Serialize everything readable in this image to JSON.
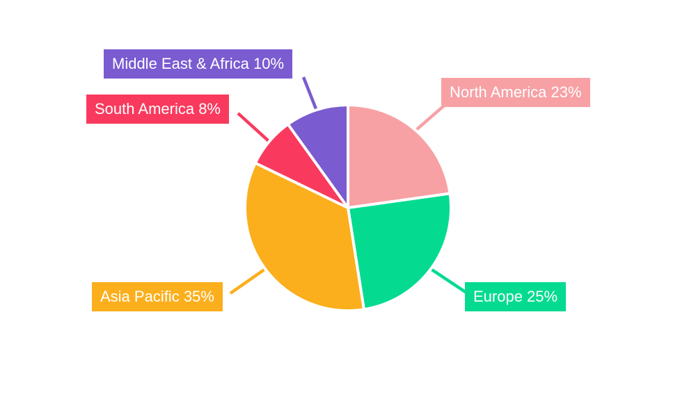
{
  "page": {
    "background_color": "#ffffff"
  },
  "chart_data": {
    "type": "pie",
    "title": "",
    "categories": [
      "North America",
      "Europe",
      "Asia Pacific",
      "South America",
      "Middle East & Africa"
    ],
    "values": [
      23,
      25,
      35,
      8,
      10
    ],
    "unit": "%",
    "colors": [
      "#f7a1a5",
      "#04db90",
      "#fbaf1d",
      "#f93a5e",
      "#7a5bd0"
    ],
    "labels": [
      "North America 23%",
      "Europe 25%",
      "Asia Pacific 35%",
      "South America 8%",
      "Middle East & Africa 10%"
    ],
    "label_text_color": "#ffffff",
    "start_angle_deg": 0,
    "direction": "clockwise",
    "legend_position": "callout-labels",
    "grid": false
  }
}
